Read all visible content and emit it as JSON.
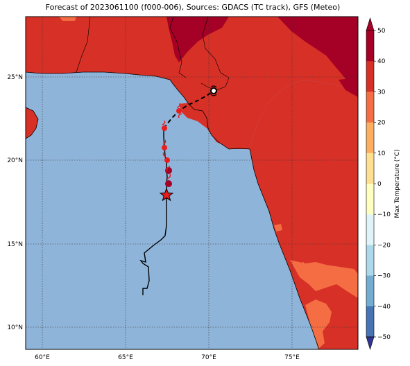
{
  "title": "Forecast of 2023061100 (f000-006), Sources: GDACS (TC track), GFS (Meteo)",
  "map": {
    "x_ticks": [
      "60°E",
      "65°E",
      "70°E",
      "75°E"
    ],
    "y_ticks": [
      "25°N",
      "20°N",
      "15°N",
      "10°N"
    ],
    "ocean_color": "#8fb4d9",
    "land_colors": {
      "30_40": "#d73027",
      "40_50": "#a50026",
      "20_30": "#f46d43"
    }
  },
  "colorbar": {
    "label": "Max Temperature (°C)",
    "ticks": [
      "50",
      "40",
      "30",
      "20",
      "10",
      "0",
      "−10",
      "−20",
      "−30",
      "−40",
      "−50"
    ],
    "colors": [
      "#a50026",
      "#d73027",
      "#f46d43",
      "#fdae61",
      "#fee090",
      "#ffffbf",
      "#e0f3f8",
      "#abd9e9",
      "#74add1",
      "#4575b4",
      "#313695"
    ]
  },
  "track": {
    "source": "GDACS",
    "marker": "star",
    "forecast_line": "dashed"
  }
}
